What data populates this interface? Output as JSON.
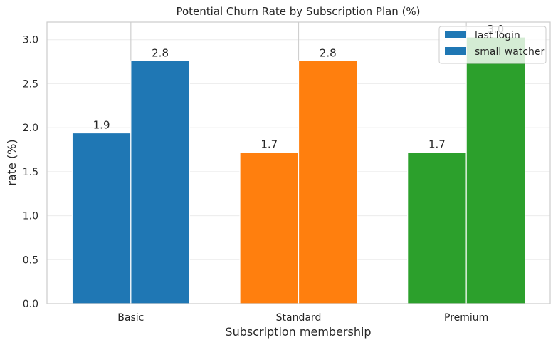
{
  "chart_data": {
    "type": "bar",
    "title": "Potential Churn Rate by Subscription Plan (%)",
    "xlabel": "Subscription membership",
    "ylabel": "rate (%)",
    "categories": [
      "Basic",
      "Standard",
      "Premium"
    ],
    "series": [
      {
        "name": "last login",
        "values": [
          1.94,
          1.72,
          1.72
        ],
        "labels": [
          "1.9",
          "1.7",
          "1.7"
        ]
      },
      {
        "name": "small watcher",
        "values": [
          2.76,
          2.76,
          3.03
        ],
        "labels": [
          "2.8",
          "2.8",
          "3.0"
        ]
      }
    ],
    "category_colors": [
      "#1f77b4",
      "#ff7f0e",
      "#2ca02c"
    ],
    "legend_color": "#1f77b4",
    "ylim": [
      0,
      3.2
    ],
    "yticks": [
      0.0,
      0.5,
      1.0,
      1.5,
      2.0,
      2.5,
      3.0
    ],
    "ytick_labels": [
      "0.0",
      "0.5",
      "1.0",
      "1.5",
      "2.0",
      "2.5",
      "3.0"
    ],
    "grid": true,
    "legend_position": "top-right"
  }
}
